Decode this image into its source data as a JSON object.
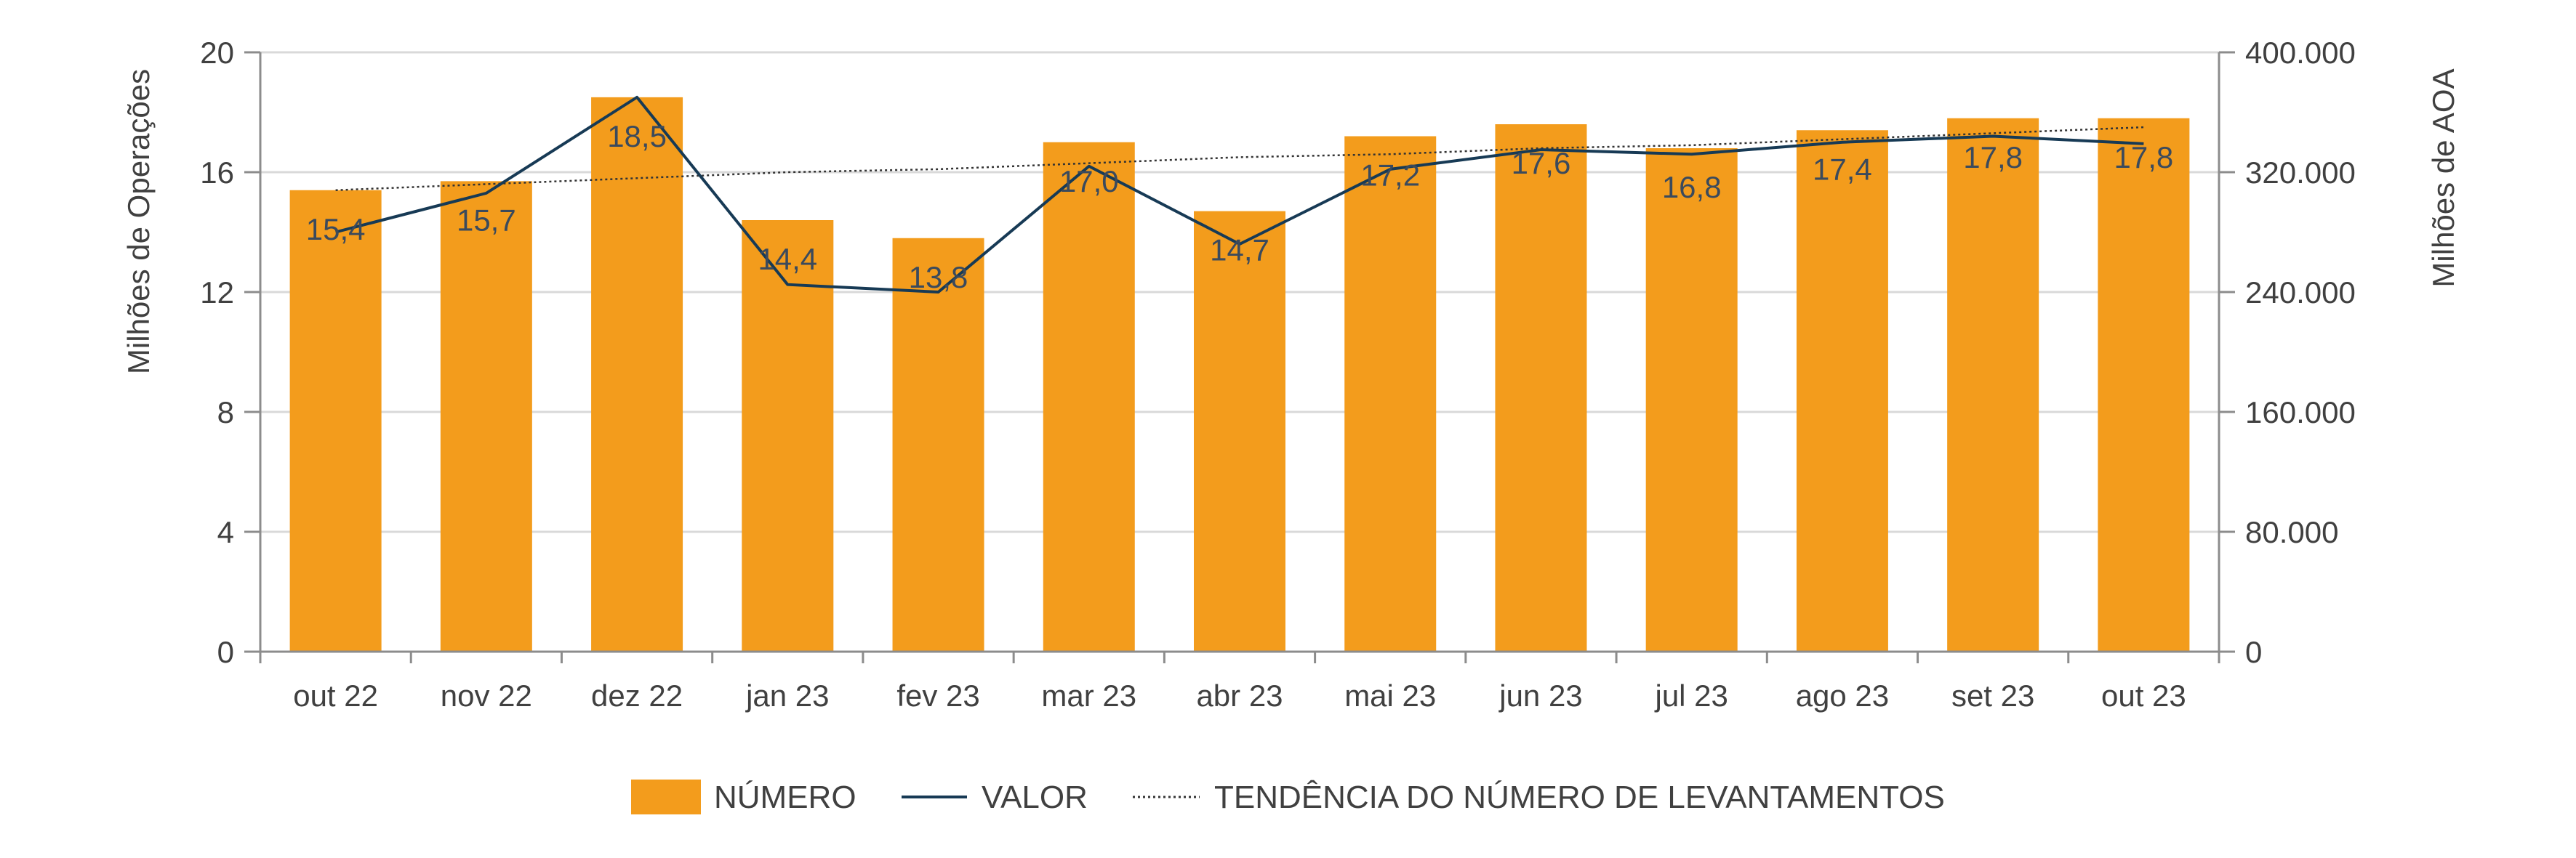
{
  "chart_data": {
    "type": "bar",
    "categories": [
      "out 22",
      "nov 22",
      "dez 22",
      "jan 23",
      "fev 23",
      "mar 23",
      "abr 23",
      "mai 23",
      "jun 23",
      "jul 23",
      "ago 23",
      "set 23",
      "out 23"
    ],
    "series": [
      {
        "name": "NÚMERO",
        "type": "bar",
        "axis": "left",
        "color": "#f39c1c",
        "values": [
          15.4,
          15.7,
          18.5,
          14.4,
          13.8,
          17.0,
          14.7,
          17.2,
          17.6,
          16.8,
          17.4,
          17.8,
          17.8
        ],
        "labels": [
          "15,4",
          "15,7",
          "18,5",
          "14,4",
          "13,8",
          "17,0",
          "14,7",
          "17,2",
          "17,6",
          "16,8",
          "17,4",
          "17,8",
          "17,8"
        ]
      },
      {
        "name": "VALOR",
        "type": "line",
        "axis": "right",
        "color": "#173a55",
        "values": [
          280000,
          306000,
          370000,
          245000,
          240000,
          324000,
          272000,
          322000,
          335000,
          332000,
          340000,
          344000,
          339000
        ]
      },
      {
        "name": "TENDÊNCIA DO NÚMERO DE LEVANTAMENTOS",
        "type": "line",
        "axis": "left",
        "style": "dotted",
        "color": "#333333",
        "values": [
          15.4,
          15.6,
          15.8,
          16.0,
          16.1,
          16.3,
          16.5,
          16.6,
          16.8,
          16.9,
          17.1,
          17.3,
          17.5
        ]
      }
    ],
    "ylabel": "Milhões de Operações",
    "ylabel_right": "Milhões de AOA",
    "ylim": [
      0,
      20
    ],
    "ylim_right": [
      0,
      400000
    ],
    "yticks": [
      0,
      4,
      8,
      12,
      16,
      20
    ],
    "yticks_labels": [
      "0",
      "4",
      "8",
      "12",
      "16",
      "20"
    ],
    "yticks_right": [
      0,
      80000,
      160000,
      240000,
      320000,
      400000
    ],
    "yticks_right_labels": [
      "0",
      "80.000",
      "160.000",
      "240.000",
      "320.000",
      "400.000"
    ],
    "grid": true,
    "legend": "bottom",
    "colors": {
      "grid": "#d9d9d9",
      "axis": "#8c8c8c"
    }
  }
}
